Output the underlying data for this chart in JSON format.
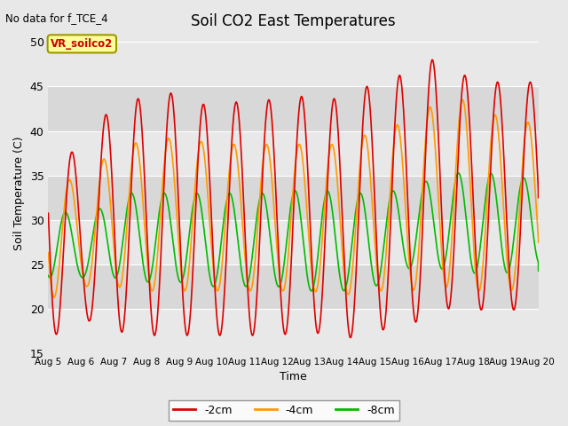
{
  "title": "Soil CO2 East Temperatures",
  "subtitle": "No data for f_TCE_4",
  "ylabel": "Soil Temperature (C)",
  "xlabel": "Time",
  "ylim": [
    15,
    51
  ],
  "xlim": [
    0,
    15
  ],
  "yticks": [
    15,
    20,
    25,
    30,
    35,
    40,
    45,
    50
  ],
  "xtick_labels": [
    "Aug 5",
    "Aug 6",
    "Aug 7",
    "Aug 8",
    "Aug 9",
    "Aug 10",
    "Aug 11",
    "Aug 12",
    "Aug 13",
    "Aug 14",
    "Aug 15",
    "Aug 16",
    "Aug 17",
    "Aug 18",
    "Aug 19",
    "Aug 20"
  ],
  "legend_labels": [
    "-2cm",
    "-4cm",
    "-8cm"
  ],
  "line_colors": [
    "#dd0000",
    "#ff9900",
    "#00bb00"
  ],
  "background_color": "#e8e8e8",
  "plot_bg_color": "#e8e8e8",
  "grid_color": "#ffffff",
  "vr_label": "VR_soilco2",
  "vr_label_color": "#cc0000",
  "vr_box_color": "#ffff99",
  "vr_box_edge": "#999900",
  "n_days": 15,
  "pts_per_day": 300,
  "line_width": 1.2,
  "red_phase": -0.25,
  "orange_phase": -0.18,
  "green_phase": -0.05,
  "red_min_trend": [
    16.5,
    19.0,
    17.5,
    17.0,
    17.0,
    17.0,
    17.0,
    17.0,
    17.5,
    16.5,
    17.5,
    18.0,
    20.0,
    20.0,
    19.5,
    21.0
  ],
  "red_max_trend": [
    45.0,
    35.0,
    44.0,
    43.5,
    44.5,
    42.5,
    43.5,
    43.5,
    44.0,
    43.5,
    45.5,
    46.5,
    48.5,
    45.5,
    45.5,
    45.5
  ],
  "orange_min_trend": [
    21.0,
    22.5,
    22.5,
    22.0,
    22.0,
    22.0,
    22.0,
    22.0,
    22.0,
    21.5,
    22.0,
    22.0,
    22.5,
    22.0,
    22.0,
    22.5
  ],
  "orange_max_trend": [
    39.5,
    32.0,
    39.0,
    38.5,
    39.5,
    38.5,
    38.5,
    38.5,
    38.5,
    38.5,
    40.0,
    41.0,
    43.5,
    43.5,
    41.0,
    41.0
  ],
  "green_min_trend": [
    23.5,
    23.5,
    23.5,
    23.0,
    23.0,
    22.5,
    22.5,
    22.5,
    22.0,
    22.0,
    22.5,
    24.5,
    24.5,
    24.0,
    24.0,
    25.0
  ],
  "green_max_trend": [
    33.0,
    29.0,
    33.0,
    33.0,
    33.0,
    33.0,
    33.0,
    33.0,
    33.5,
    33.0,
    33.0,
    33.5,
    35.0,
    35.5,
    35.0,
    34.5
  ],
  "band_colors": [
    "#e8e8e8",
    "#d8d8d8"
  ],
  "band_ranges": [
    [
      15,
      20
    ],
    [
      20,
      25
    ],
    [
      25,
      30
    ],
    [
      30,
      35
    ],
    [
      35,
      40
    ],
    [
      40,
      45
    ],
    [
      45,
      51
    ]
  ],
  "band_pattern": [
    0,
    1,
    0,
    1,
    0,
    1,
    0
  ]
}
